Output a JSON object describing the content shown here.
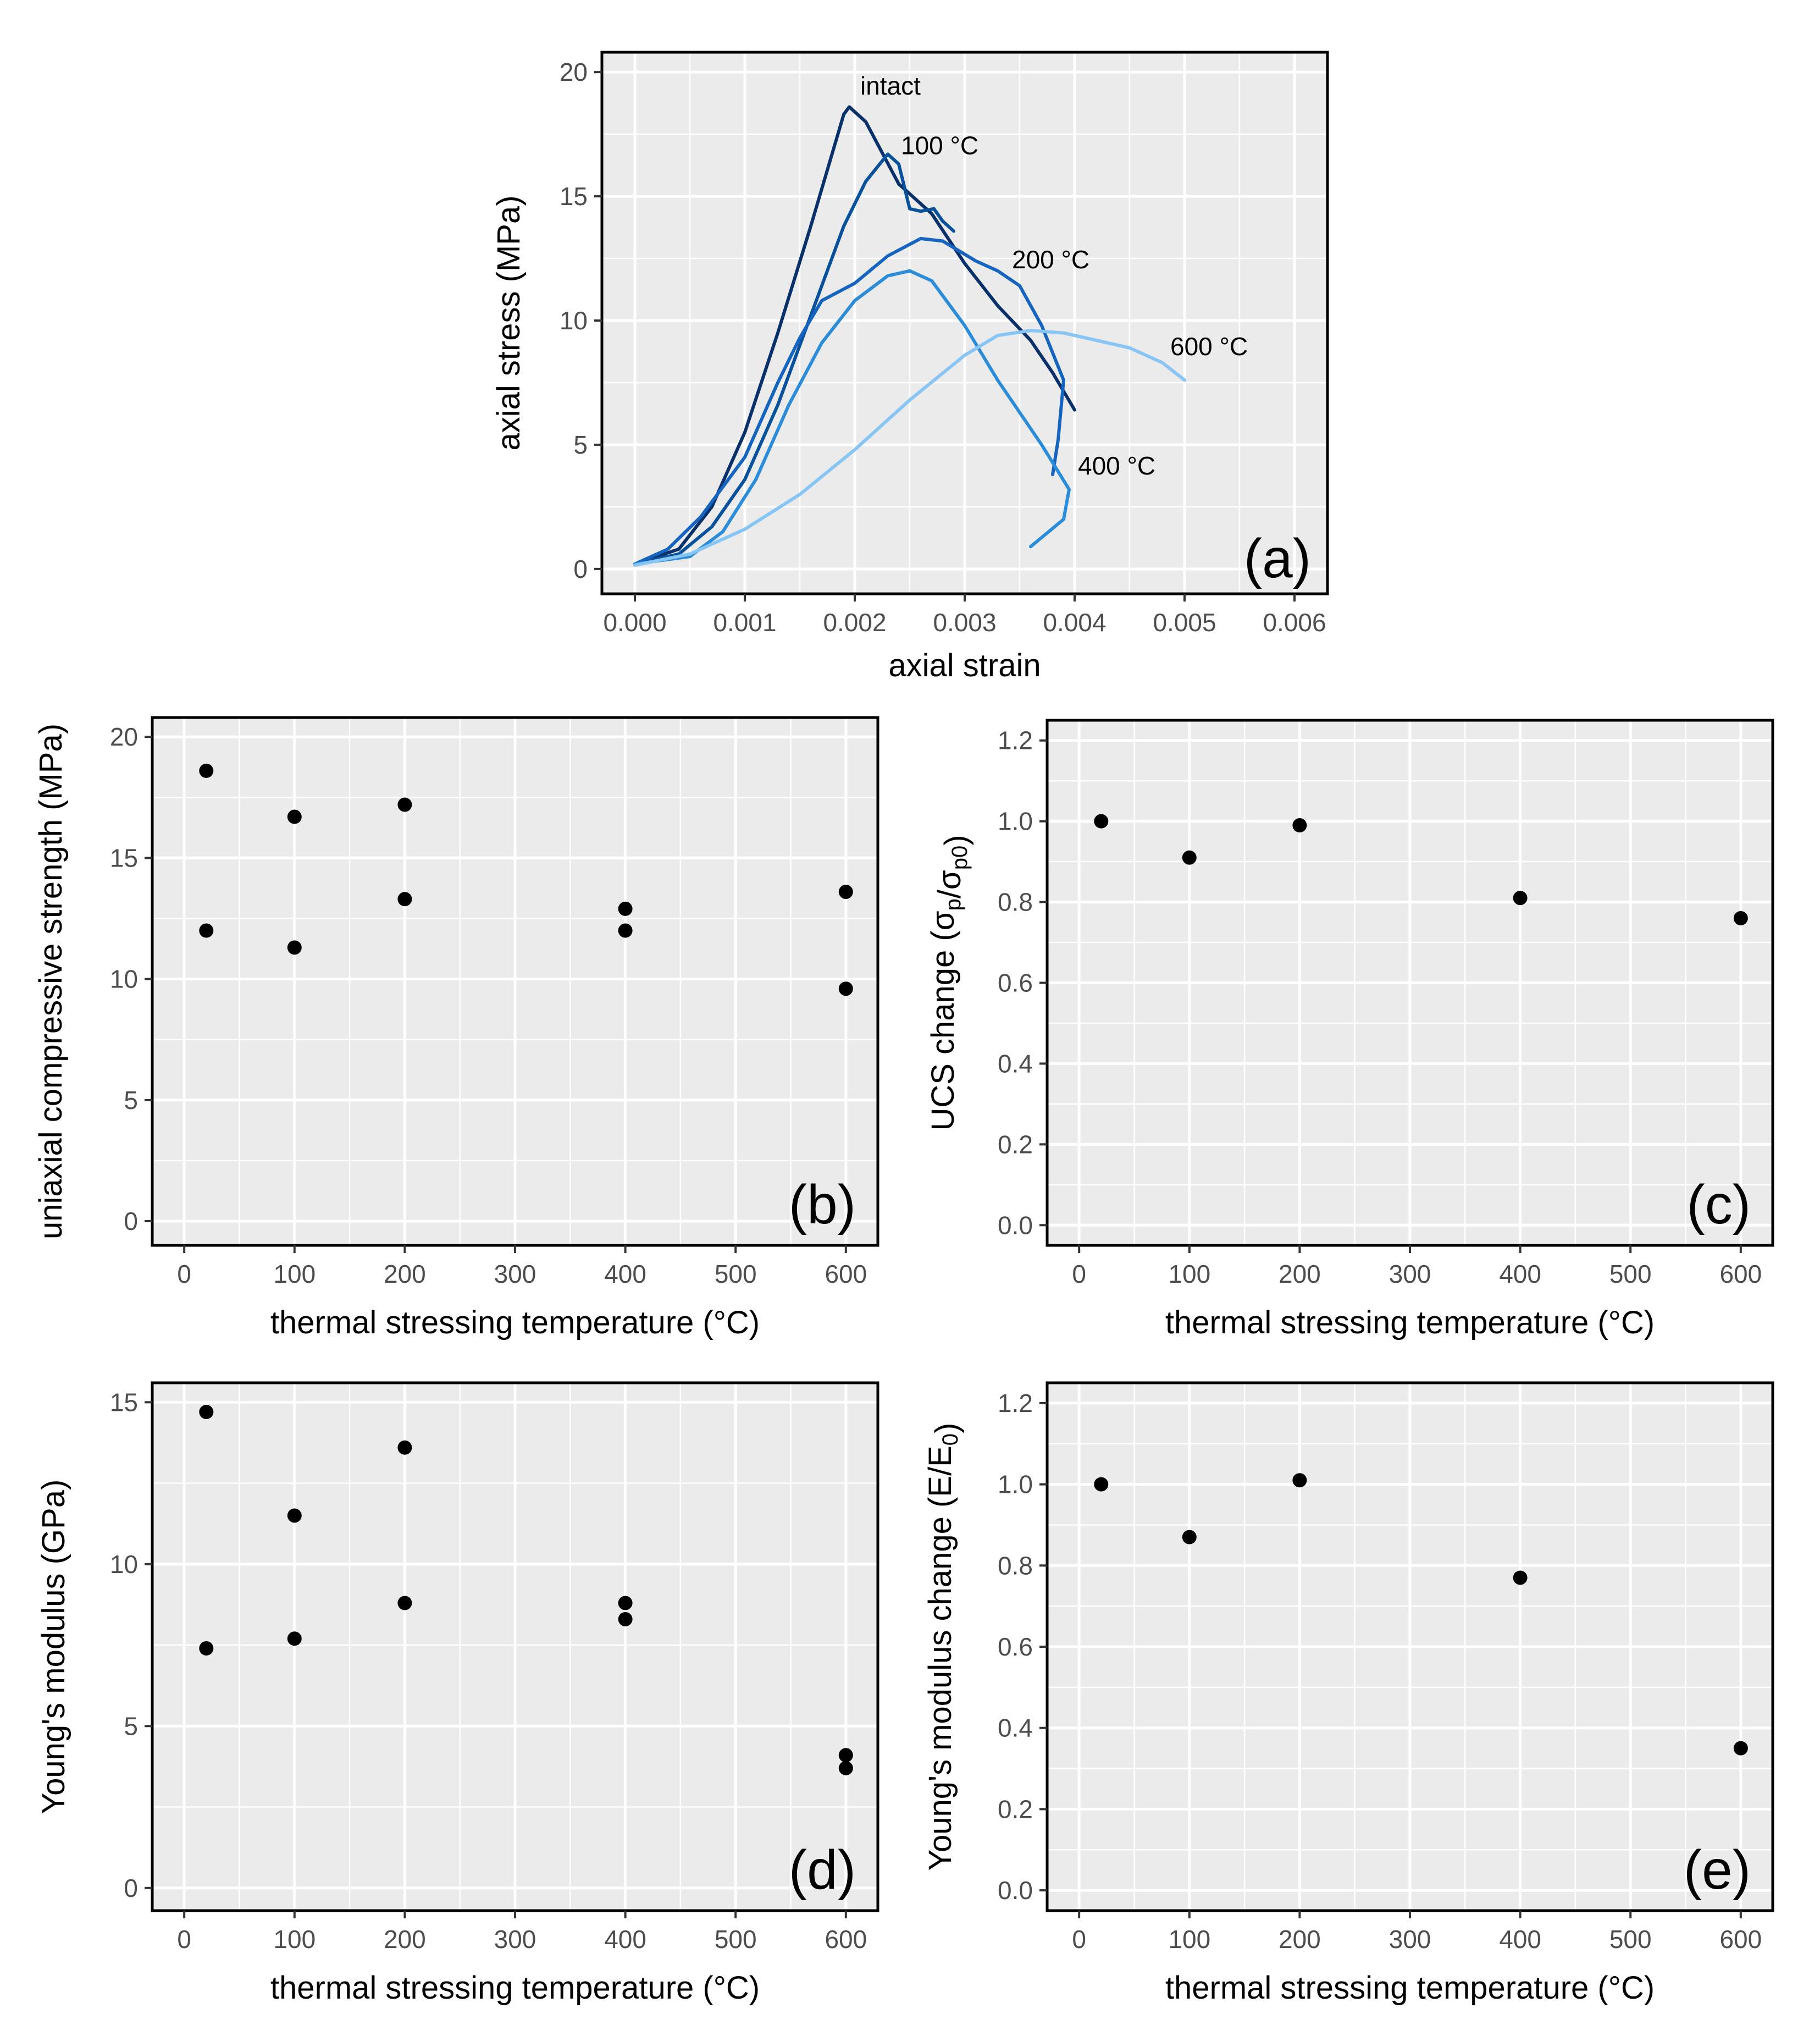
{
  "chart_data": [
    {
      "id": "a",
      "type": "line",
      "panel_label": "(a)",
      "xlabel": "axial strain",
      "ylabel": "axial stress (MPa)",
      "xlim": [
        -0.0003,
        0.0063
      ],
      "ylim": [
        -1.0,
        20.8
      ],
      "xticks": [
        0,
        0.001,
        0.002,
        0.003,
        0.004,
        0.005,
        0.006
      ],
      "xtick_labels": [
        "0.000",
        "0.001",
        "0.002",
        "0.003",
        "0.004",
        "0.005",
        "0.006"
      ],
      "yticks": [
        0,
        5,
        10,
        15,
        20
      ],
      "ytick_labels": [
        "0",
        "5",
        "10",
        "15",
        "20"
      ],
      "grid": true,
      "series": [
        {
          "name": "intact",
          "label": "intact",
          "color": "#08306b",
          "points": [
            [
              0,
              0.2
            ],
            [
              0.0004,
              0.8
            ],
            [
              0.0007,
              2.5
            ],
            [
              0.001,
              5.5
            ],
            [
              0.0013,
              9.5
            ],
            [
              0.0016,
              13.8
            ],
            [
              0.0018,
              16.8
            ],
            [
              0.0019,
              18.3
            ],
            [
              0.00195,
              18.6
            ],
            [
              0.0021,
              18.0
            ],
            [
              0.0024,
              15.5
            ],
            [
              0.0027,
              14.3
            ],
            [
              0.003,
              12.3
            ],
            [
              0.0033,
              10.6
            ],
            [
              0.0036,
              9.2
            ],
            [
              0.0038,
              7.9
            ],
            [
              0.004,
              6.4
            ]
          ]
        },
        {
          "name": "100 °C",
          "label": "100 °C",
          "color": "#08519c",
          "points": [
            [
              0,
              0.2
            ],
            [
              0.0004,
              0.6
            ],
            [
              0.0007,
              1.7
            ],
            [
              0.001,
              3.6
            ],
            [
              0.0013,
              6.6
            ],
            [
              0.0016,
              10.2
            ],
            [
              0.0019,
              13.8
            ],
            [
              0.0021,
              15.6
            ],
            [
              0.0023,
              16.7
            ],
            [
              0.0024,
              16.3
            ],
            [
              0.0025,
              14.5
            ],
            [
              0.0026,
              14.4
            ],
            [
              0.00272,
              14.5
            ],
            [
              0.0028,
              14.0
            ],
            [
              0.0029,
              13.6
            ]
          ]
        },
        {
          "name": "200 °C",
          "label": "200 °C",
          "color": "#1565c0",
          "points": [
            [
              0,
              0.2
            ],
            [
              0.0003,
              0.8
            ],
            [
              0.0006,
              2.1
            ],
            [
              0.001,
              4.5
            ],
            [
              0.0013,
              7.5
            ],
            [
              0.0015,
              9.3
            ],
            [
              0.0017,
              10.8
            ],
            [
              0.002,
              11.5
            ],
            [
              0.0023,
              12.6
            ],
            [
              0.0026,
              13.3
            ],
            [
              0.0028,
              13.2
            ],
            [
              0.0031,
              12.4
            ],
            [
              0.0033,
              12.0
            ],
            [
              0.0035,
              11.4
            ],
            [
              0.0037,
              9.8
            ],
            [
              0.0039,
              7.6
            ],
            [
              0.00385,
              5.2
            ],
            [
              0.0038,
              3.8
            ]
          ]
        },
        {
          "name": "400 °C",
          "label": "400 °C",
          "color": "#2b8cd9",
          "points": [
            [
              0,
              0.2
            ],
            [
              0.0005,
              0.5
            ],
            [
              0.0008,
              1.5
            ],
            [
              0.0011,
              3.6
            ],
            [
              0.0014,
              6.6
            ],
            [
              0.0017,
              9.1
            ],
            [
              0.002,
              10.8
            ],
            [
              0.0023,
              11.8
            ],
            [
              0.0025,
              12.0
            ],
            [
              0.0027,
              11.6
            ],
            [
              0.003,
              9.8
            ],
            [
              0.0033,
              7.6
            ],
            [
              0.0037,
              5.0
            ],
            [
              0.00395,
              3.2
            ],
            [
              0.0039,
              2.0
            ],
            [
              0.0036,
              0.9
            ]
          ]
        },
        {
          "name": "600 °C",
          "label": "600 °C",
          "color": "#86c5f4",
          "points": [
            [
              0,
              0.15
            ],
            [
              0.0005,
              0.6
            ],
            [
              0.001,
              1.6
            ],
            [
              0.0015,
              3.0
            ],
            [
              0.002,
              4.8
            ],
            [
              0.0025,
              6.8
            ],
            [
              0.003,
              8.6
            ],
            [
              0.0033,
              9.4
            ],
            [
              0.0036,
              9.6
            ],
            [
              0.0039,
              9.5
            ],
            [
              0.0042,
              9.2
            ],
            [
              0.0045,
              8.9
            ],
            [
              0.0048,
              8.3
            ],
            [
              0.005,
              7.6
            ]
          ]
        }
      ],
      "labels": [
        {
          "text": "intact",
          "x": 0.00205,
          "y": 19.1
        },
        {
          "text": "100 °C",
          "x": 0.00242,
          "y": 16.7
        },
        {
          "text": "200 °C",
          "x": 0.00343,
          "y": 12.1
        },
        {
          "text": "600 °C",
          "x": 0.00487,
          "y": 8.6
        },
        {
          "text": "400 °C",
          "x": 0.00403,
          "y": 3.8
        }
      ]
    },
    {
      "id": "b",
      "type": "scatter",
      "panel_label": "(b)",
      "xlabel": "thermal stressing temperature (°C)",
      "ylabel": "uniaxial compressive strength (MPa)",
      "xlim": [
        -29,
        629
      ],
      "ylim": [
        -1.0,
        20.8
      ],
      "xticks": [
        0,
        100,
        200,
        300,
        400,
        500,
        600
      ],
      "xtick_labels": [
        "0",
        "100",
        "200",
        "300",
        "400",
        "500",
        "600"
      ],
      "yticks": [
        0,
        5,
        10,
        15,
        20
      ],
      "ytick_labels": [
        "0",
        "5",
        "10",
        "15",
        "20"
      ],
      "grid": true,
      "x": [
        20,
        20,
        100,
        100,
        200,
        200,
        400,
        400,
        600,
        600
      ],
      "y": [
        18.6,
        12.0,
        16.7,
        11.3,
        17.2,
        13.3,
        12.9,
        12.0,
        13.6,
        9.6
      ]
    },
    {
      "id": "c",
      "type": "scatter",
      "panel_label": "(c)",
      "xlabel": "thermal stressing temperature (°C)",
      "ylabel": "UCS change (σp/σp0)",
      "ylabel_main": "UCS change (σ",
      "ylabel_sub1": "p",
      "ylabel_mid": "/σ",
      "ylabel_sub2": "p0",
      "ylabel_end": ")",
      "xlim": [
        -29,
        629
      ],
      "ylim": [
        -0.05,
        1.25
      ],
      "xticks": [
        0,
        100,
        200,
        300,
        400,
        500,
        600
      ],
      "xtick_labels": [
        "0",
        "100",
        "200",
        "300",
        "400",
        "500",
        "600"
      ],
      "yticks": [
        0,
        0.2,
        0.4,
        0.6,
        0.8,
        1.0,
        1.2
      ],
      "ytick_labels": [
        "0.0",
        "0.2",
        "0.4",
        "0.6",
        "0.8",
        "1.0",
        "1.2"
      ],
      "grid": true,
      "x": [
        20,
        100,
        200,
        400,
        600
      ],
      "y": [
        1.0,
        0.91,
        0.99,
        0.81,
        0.76
      ]
    },
    {
      "id": "d",
      "type": "scatter",
      "panel_label": "(d)",
      "xlabel": "thermal stressing temperature (°C)",
      "ylabel": "Young's modulus (GPa)",
      "xlim": [
        -29,
        629
      ],
      "ylim": [
        -0.7,
        15.6
      ],
      "xticks": [
        0,
        100,
        200,
        300,
        400,
        500,
        600
      ],
      "xtick_labels": [
        "0",
        "100",
        "200",
        "300",
        "400",
        "500",
        "600"
      ],
      "yticks": [
        0,
        5,
        10,
        15
      ],
      "ytick_labels": [
        "0",
        "5",
        "10",
        "15"
      ],
      "grid": true,
      "x": [
        20,
        20,
        100,
        100,
        200,
        200,
        400,
        400,
        600,
        600
      ],
      "y": [
        14.7,
        7.4,
        11.5,
        7.7,
        13.6,
        8.8,
        8.8,
        8.3,
        4.1,
        3.7
      ]
    },
    {
      "id": "e",
      "type": "scatter",
      "panel_label": "(e)",
      "xlabel": "thermal stressing temperature (°C)",
      "ylabel": "Young's modulus change (E/E0)",
      "ylabel_main": "Young's modulus change (E/E",
      "ylabel_sub1": "0",
      "ylabel_mid": "",
      "ylabel_sub2": "",
      "ylabel_end": ")",
      "xlim": [
        -29,
        629
      ],
      "ylim": [
        -0.05,
        1.25
      ],
      "xticks": [
        0,
        100,
        200,
        300,
        400,
        500,
        600
      ],
      "xtick_labels": [
        "0",
        "100",
        "200",
        "300",
        "400",
        "500",
        "600"
      ],
      "yticks": [
        0,
        0.2,
        0.4,
        0.6,
        0.8,
        1.0,
        1.2
      ],
      "ytick_labels": [
        "0.0",
        "0.2",
        "0.4",
        "0.6",
        "0.8",
        "1.0",
        "1.2"
      ],
      "grid": true,
      "x": [
        20,
        100,
        200,
        400,
        600
      ],
      "y": [
        1.0,
        0.87,
        1.01,
        0.77,
        0.35
      ]
    }
  ],
  "colors": {
    "panel_background": "#ebebeb",
    "grid_major": "#ffffff",
    "frame": "#000000",
    "point": "#000000"
  }
}
